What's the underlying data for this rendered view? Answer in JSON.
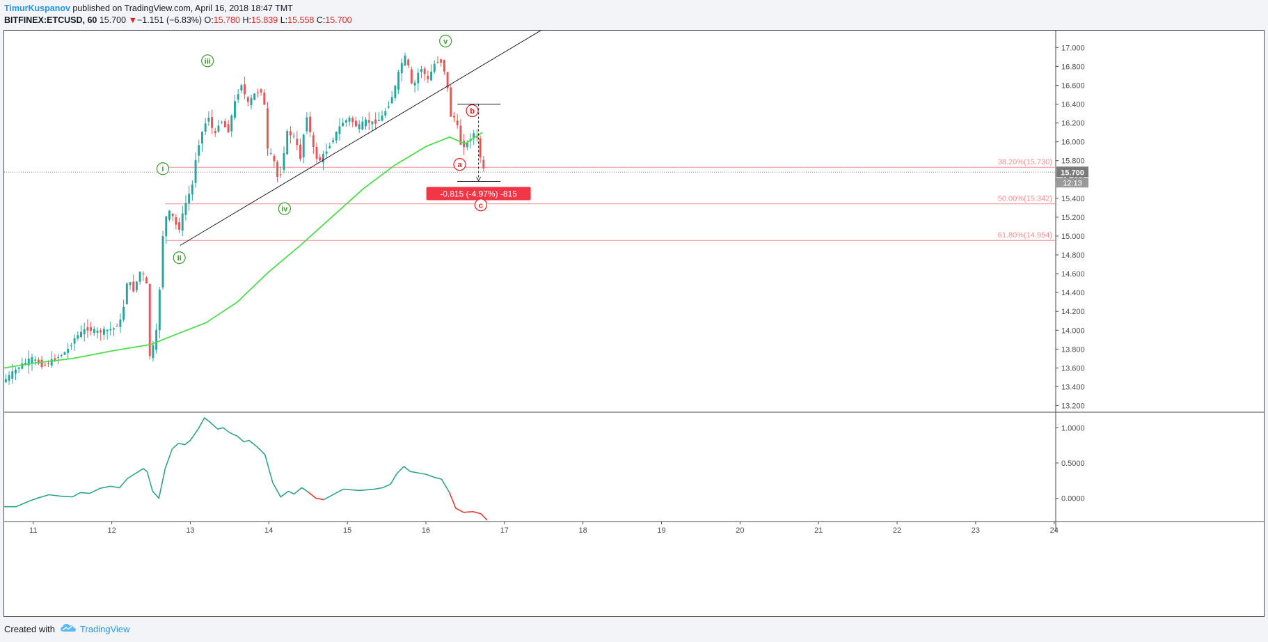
{
  "header": {
    "author": "TimurKuspanov",
    "published_text": "published on TradingView.com, April 16, 2018 18:47 TMT",
    "symbol": "BITFINEX:ETCUSD, 60",
    "last": "15.700",
    "change_arrow": "▼",
    "change": "−1.151 (−6.83%)",
    "o_label": "O:",
    "o_value": "15.780",
    "h_label": "H:",
    "h_value": "15.839",
    "l_label": "L:",
    "l_value": "15.558",
    "c_label": "C:",
    "c_value": "15.700"
  },
  "footer": {
    "created_with": "Created with",
    "brand": "TradingView",
    "logo_icon": "tradingview-cloud-icon"
  },
  "colors": {
    "up": "#26a69a",
    "down": "#ef5350",
    "ma": "#4cdd4c",
    "fib": "#f58f8f",
    "wave_green": "#3b9b2c",
    "wave_red": "#e81b1b",
    "osc_up": "#2fa38a",
    "osc_down": "#e53935",
    "trendline": "#131722"
  },
  "chart_data": [
    {
      "type": "candlestick",
      "symbol": "BITFINEX:ETCUSD",
      "interval": "60",
      "x_ticks": [
        "11",
        "12",
        "13",
        "14",
        "15",
        "16",
        "17",
        "18",
        "19",
        "20",
        "21",
        "22",
        "23",
        "24"
      ],
      "xlim": [
        10.63,
        24.02
      ],
      "ylim": [
        13.13,
        17.18
      ],
      "y_ticks": [
        "13.200",
        "13.400",
        "13.600",
        "13.800",
        "14.000",
        "14.200",
        "14.400",
        "14.600",
        "14.800",
        "15.000",
        "15.200",
        "15.400",
        "15.600",
        "15.800",
        "16.000",
        "16.200",
        "16.400",
        "16.600",
        "16.800",
        "17.000"
      ],
      "price_anchors": [
        [
          10.63,
          13.45
        ],
        [
          10.85,
          13.62
        ],
        [
          11.0,
          13.7
        ],
        [
          11.15,
          13.62
        ],
        [
          11.3,
          13.7
        ],
        [
          11.45,
          13.78
        ],
        [
          11.55,
          13.92
        ],
        [
          11.7,
          14.02
        ],
        [
          11.85,
          13.98
        ],
        [
          11.95,
          14.0
        ],
        [
          12.05,
          14.02
        ],
        [
          12.15,
          14.12
        ],
        [
          12.22,
          14.55
        ],
        [
          12.3,
          14.42
        ],
        [
          12.38,
          14.62
        ],
        [
          12.46,
          14.55
        ],
        [
          12.5,
          13.72
        ],
        [
          12.58,
          13.9
        ],
        [
          12.62,
          14.3
        ],
        [
          12.67,
          15.0
        ],
        [
          12.73,
          15.28
        ],
        [
          12.8,
          15.2
        ],
        [
          12.87,
          15.05
        ],
        [
          12.95,
          15.32
        ],
        [
          13.05,
          15.55
        ],
        [
          13.1,
          15.9
        ],
        [
          13.17,
          16.1
        ],
        [
          13.25,
          16.28
        ],
        [
          13.33,
          16.05
        ],
        [
          13.4,
          16.25
        ],
        [
          13.5,
          16.1
        ],
        [
          13.58,
          16.4
        ],
        [
          13.67,
          16.62
        ],
        [
          13.75,
          16.4
        ],
        [
          13.85,
          16.52
        ],
        [
          13.95,
          16.55
        ],
        [
          14.0,
          15.92
        ],
        [
          14.08,
          15.82
        ],
        [
          14.15,
          15.55
        ],
        [
          14.25,
          16.1
        ],
        [
          14.35,
          16.05
        ],
        [
          14.42,
          15.82
        ],
        [
          14.5,
          16.3
        ],
        [
          14.58,
          15.95
        ],
        [
          14.65,
          15.78
        ],
        [
          14.75,
          15.9
        ],
        [
          14.85,
          16.05
        ],
        [
          14.95,
          16.2
        ],
        [
          15.05,
          16.25
        ],
        [
          15.15,
          16.15
        ],
        [
          15.25,
          16.22
        ],
        [
          15.35,
          16.2
        ],
        [
          15.45,
          16.25
        ],
        [
          15.55,
          16.4
        ],
        [
          15.62,
          16.55
        ],
        [
          15.7,
          16.82
        ],
        [
          15.77,
          16.92
        ],
        [
          15.85,
          16.55
        ],
        [
          15.95,
          16.8
        ],
        [
          16.05,
          16.65
        ],
        [
          16.12,
          16.82
        ],
        [
          16.2,
          16.88
        ],
        [
          16.28,
          16.7
        ],
        [
          16.33,
          16.28
        ],
        [
          16.4,
          16.25
        ],
        [
          16.47,
          15.95
        ],
        [
          16.55,
          15.98
        ],
        [
          16.62,
          16.1
        ],
        [
          16.68,
          16.02
        ],
        [
          16.72,
          15.8
        ],
        [
          16.75,
          15.7
        ]
      ],
      "ma_line": [
        [
          10.63,
          13.6
        ],
        [
          11.0,
          13.65
        ],
        [
          11.5,
          13.7
        ],
        [
          12.0,
          13.78
        ],
        [
          12.5,
          13.85
        ],
        [
          12.8,
          13.95
        ],
        [
          13.2,
          14.08
        ],
        [
          13.6,
          14.3
        ],
        [
          14.0,
          14.62
        ],
        [
          14.4,
          14.9
        ],
        [
          14.8,
          15.2
        ],
        [
          15.2,
          15.5
        ],
        [
          15.6,
          15.75
        ],
        [
          16.0,
          15.95
        ],
        [
          16.3,
          16.05
        ],
        [
          16.5,
          15.98
        ],
        [
          16.72,
          16.1
        ]
      ],
      "trendline": [
        [
          12.87,
          14.9
        ],
        [
          17.5,
          17.2
        ]
      ],
      "fib_levels": [
        {
          "label": "38.20%(15.730)",
          "price": 15.73,
          "from": 12.68
        },
        {
          "label": "50.00%(15.342)",
          "price": 15.342,
          "from": 12.68
        },
        {
          "label": "61.80%(14.954)",
          "price": 14.954,
          "from": 12.68
        }
      ],
      "wave_labels": [
        {
          "label": "i",
          "x": 12.65,
          "price": 15.715,
          "color": "green"
        },
        {
          "label": "ii",
          "x": 12.86,
          "price": 14.77,
          "color": "green"
        },
        {
          "label": "iii",
          "x": 13.22,
          "price": 16.86,
          "color": "green"
        },
        {
          "label": "iv",
          "x": 14.2,
          "price": 15.29,
          "color": "green"
        },
        {
          "label": "v",
          "x": 16.25,
          "price": 17.07,
          "color": "green"
        },
        {
          "label": "b",
          "x": 16.59,
          "price": 16.33,
          "color": "red"
        },
        {
          "label": "a",
          "x": 16.43,
          "price": 15.76,
          "color": "red"
        },
        {
          "label": "c",
          "x": 16.7,
          "price": 15.33,
          "color": "red"
        }
      ],
      "measure": {
        "x1": 16.4,
        "x2": 16.95,
        "xm": 16.67,
        "top": 16.4,
        "bottom": 15.58,
        "label": "-0.815 (-4.97%) -815"
      },
      "current_price_label": "15.700",
      "countdown_label": "12:13"
    },
    {
      "type": "line",
      "panel": "oscillator",
      "ylim": [
        -0.33,
        1.21
      ],
      "y_ticks": [
        "1.0000",
        "0.5000",
        "0.0000"
      ],
      "series": [
        {
          "values": [
            [
              10.63,
              -0.12
            ],
            [
              10.78,
              -0.12
            ],
            [
              10.95,
              -0.04
            ],
            [
              11.05,
              0.0
            ],
            [
              11.2,
              0.05
            ],
            [
              11.35,
              0.03
            ],
            [
              11.5,
              0.02
            ],
            [
              11.6,
              0.08
            ],
            [
              11.72,
              0.07
            ],
            [
              11.85,
              0.14
            ],
            [
              11.98,
              0.17
            ],
            [
              12.1,
              0.15
            ],
            [
              12.2,
              0.28
            ],
            [
              12.3,
              0.35
            ],
            [
              12.4,
              0.42
            ],
            [
              12.45,
              0.38
            ],
            [
              12.52,
              0.1
            ],
            [
              12.6,
              0.0
            ],
            [
              12.68,
              0.42
            ],
            [
              12.77,
              0.7
            ],
            [
              12.85,
              0.78
            ],
            [
              12.93,
              0.76
            ],
            [
              13.0,
              0.82
            ],
            [
              13.1,
              0.98
            ],
            [
              13.18,
              1.14
            ],
            [
              13.25,
              1.08
            ],
            [
              13.35,
              0.98
            ],
            [
              13.42,
              1.0
            ],
            [
              13.5,
              0.93
            ],
            [
              13.6,
              0.88
            ],
            [
              13.68,
              0.8
            ],
            [
              13.75,
              0.82
            ],
            [
              13.85,
              0.73
            ],
            [
              13.95,
              0.62
            ],
            [
              14.05,
              0.22
            ],
            [
              14.15,
              0.02
            ],
            [
              14.25,
              0.1
            ],
            [
              14.32,
              0.06
            ],
            [
              14.42,
              0.15
            ],
            [
              14.5,
              0.09
            ]
          ],
          "color": "up"
        },
        {
          "values": [
            [
              14.5,
              0.09
            ],
            [
              14.6,
              0.0
            ],
            [
              14.7,
              -0.02
            ]
          ],
          "color": "down"
        },
        {
          "values": [
            [
              14.7,
              -0.02
            ],
            [
              14.85,
              0.07
            ],
            [
              14.95,
              0.13
            ],
            [
              15.05,
              0.12
            ],
            [
              15.15,
              0.11
            ],
            [
              15.25,
              0.12
            ],
            [
              15.35,
              0.13
            ],
            [
              15.45,
              0.15
            ],
            [
              15.55,
              0.2
            ],
            [
              15.63,
              0.35
            ],
            [
              15.72,
              0.45
            ],
            [
              15.8,
              0.38
            ],
            [
              15.9,
              0.36
            ],
            [
              16.0,
              0.34
            ],
            [
              16.1,
              0.3
            ],
            [
              16.2,
              0.27
            ],
            [
              16.3,
              0.08
            ]
          ],
          "color": "up"
        },
        {
          "values": [
            [
              16.3,
              0.08
            ],
            [
              16.38,
              -0.14
            ],
            [
              16.48,
              -0.2
            ],
            [
              16.6,
              -0.19
            ],
            [
              16.7,
              -0.22
            ],
            [
              16.78,
              -0.31
            ]
          ],
          "color": "down"
        }
      ]
    }
  ]
}
